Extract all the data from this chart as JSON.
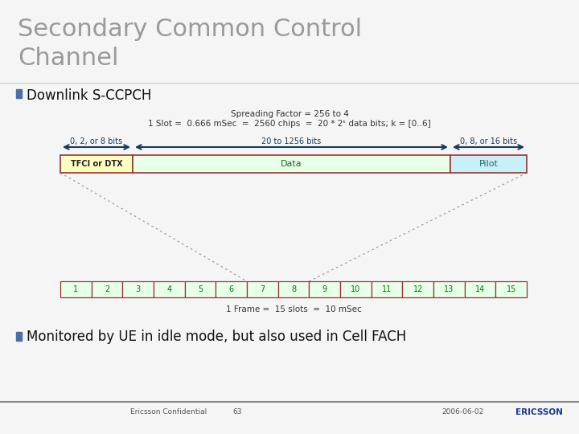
{
  "title_line1": "Secondary Common Control",
  "title_line2": "Channel",
  "title_color": "#9a9a9a",
  "title_fontsize": 22,
  "bullet_color": "#4a6fa8",
  "bullet1_text": "Downlink S-CCPCH",
  "bullet1_fontsize": 12,
  "spreading_line1": "Spreading Factor = 256 to 4",
  "spreading_line2": "1 Slot =  0.666 mSec  =  2560 chips  =  20 * 2ᵋ data bits; k = [0..6]",
  "spreading_fontsize": 7.5,
  "arrow_color": "#1a3a5c",
  "tfci_label": "TFCI or DTX",
  "tfci_color": "#ffffc0",
  "tfci_border": "#993333",
  "data_label": "Data",
  "data_color": "#e8ffe8",
  "data_border": "#993333",
  "pilot_label": "Pilot",
  "pilot_color": "#c8f0f8",
  "pilot_border": "#993333",
  "label_0_2_8": "0, 2, or 8 bits",
  "label_20_1256": "20 to 1256 bits",
  "label_0_8_16": "0, 8, or 16 bits",
  "slot_label_color": "#007700",
  "slot_fill": "#e8ffe8",
  "slot_border": "#993333",
  "frame_label": "1 Frame =  15 slots  =  10 mSec",
  "dotted_color": "#999999",
  "bullet2_text": "Monitored by UE in idle mode, but also used in Cell FACH",
  "footer_left": "Ericsson Confidential",
  "footer_page": "63",
  "footer_right": "2006-06-02",
  "footer_brand": "ERICSSON",
  "bg_color": "#f5f5f5",
  "footer_bar_color": "#888888"
}
